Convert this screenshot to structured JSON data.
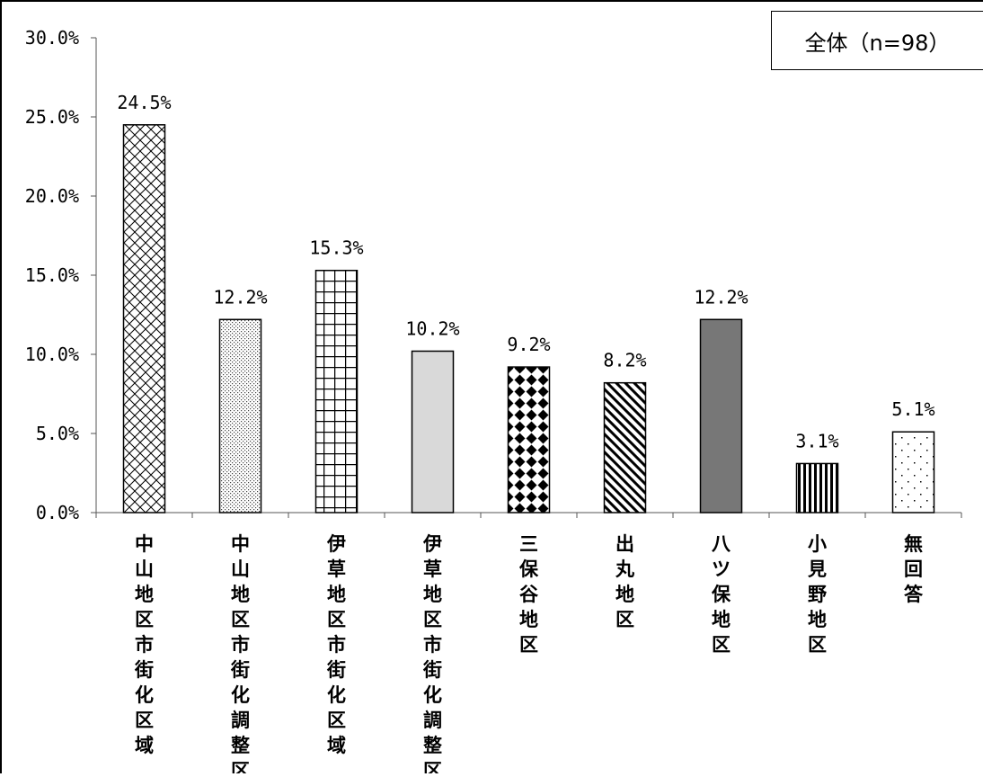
{
  "chart_data": {
    "type": "bar",
    "title": "",
    "legend_label": "全体（n=98）",
    "ylim": [
      0,
      30
    ],
    "y_ticks": [
      "0.0%",
      "5.0%",
      "10.0%",
      "15.0%",
      "20.0%",
      "25.0%",
      "30.0%"
    ],
    "categories": [
      "中山地区市街化区域",
      "中山地区市街化調整区域",
      "伊草地区市街化区域",
      "伊草地区市街化調整区域",
      "三保谷地区",
      "出丸地区",
      "八ツ保地区",
      "小見野地区",
      "無回答"
    ],
    "values": [
      24.5,
      12.2,
      15.3,
      10.2,
      9.2,
      8.2,
      12.2,
      3.1,
      5.1
    ],
    "value_labels": [
      "24.5%",
      "12.2%",
      "15.3%",
      "10.2%",
      "9.2%",
      "8.2%",
      "12.2%",
      "3.1%",
      "5.1%"
    ],
    "patterns": [
      "cross-hatch",
      "fine-dots",
      "grid",
      "light-gray",
      "diamonds",
      "diagonal-stripes",
      "dark-gray",
      "vertical-stripes",
      "sparse-dots"
    ]
  }
}
